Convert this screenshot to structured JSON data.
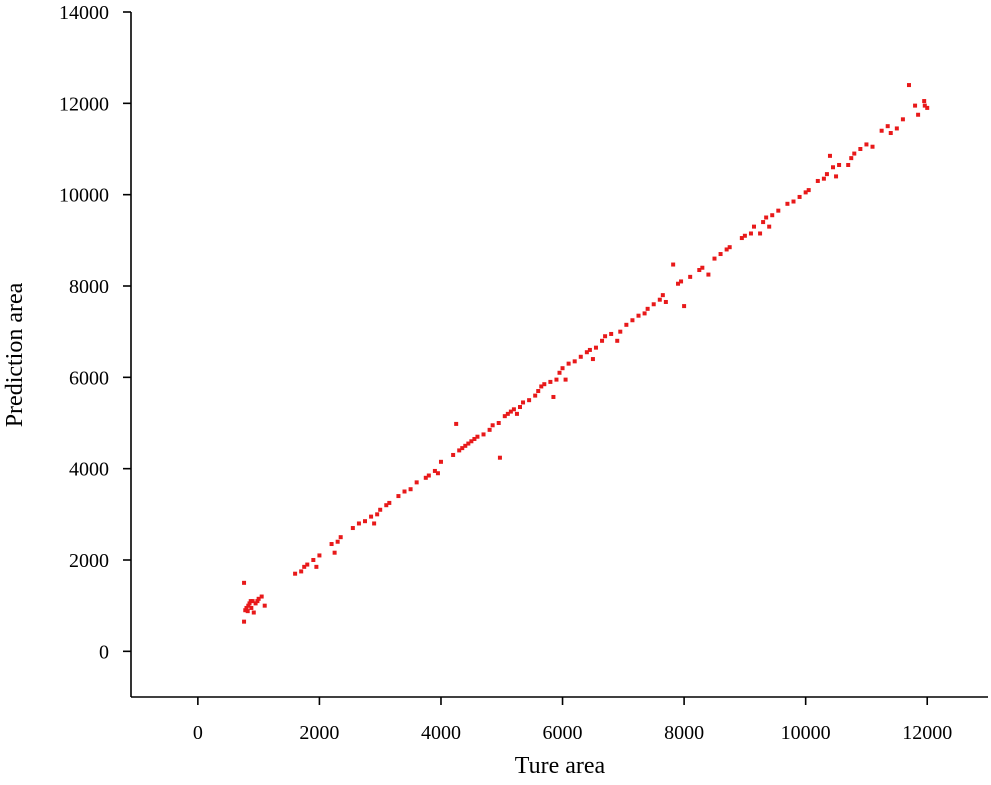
{
  "chart_data": {
    "type": "scatter",
    "x_label": "Ture area",
    "y_label": "Prediction area",
    "color": "#e8191a",
    "xlim": [
      -1100,
      13000
    ],
    "ylim": [
      -1000,
      14000
    ],
    "xticks": [
      0,
      2000,
      4000,
      6000,
      8000,
      10000,
      12000
    ],
    "yticks": [
      0,
      2000,
      4000,
      6000,
      8000,
      10000,
      12000,
      14000
    ],
    "x": [
      760,
      760,
      780,
      800,
      830,
      850,
      870,
      880,
      900,
      920,
      950,
      980,
      1000,
      1050,
      1100,
      820,
      1600,
      1700,
      1750,
      1800,
      1900,
      1950,
      2000,
      2200,
      2250,
      2300,
      2350,
      2550,
      2650,
      2750,
      2850,
      2900,
      2950,
      3000,
      3100,
      3150,
      3300,
      3400,
      3500,
      3600,
      3750,
      3800,
      3900,
      3950,
      4000,
      4200,
      4250,
      4300,
      4350,
      4400,
      4450,
      4500,
      4550,
      4600,
      4700,
      4800,
      4850,
      4950,
      4970,
      5050,
      5100,
      5150,
      5200,
      5250,
      5300,
      5350,
      5450,
      5550,
      5600,
      5650,
      5700,
      5800,
      5850,
      5900,
      5950,
      6000,
      6050,
      6100,
      6200,
      6300,
      6400,
      6450,
      6500,
      6550,
      6650,
      6700,
      6800,
      6900,
      6950,
      7050,
      7150,
      7250,
      7350,
      7400,
      7500,
      7600,
      7650,
      7700,
      7820,
      7900,
      7950,
      8000,
      8100,
      8250,
      8300,
      8400,
      8500,
      8600,
      8700,
      8750,
      8950,
      9000,
      9100,
      9150,
      9250,
      9300,
      9350,
      9400,
      9450,
      9550,
      9700,
      9800,
      9900,
      10000,
      10050,
      10200,
      10300,
      10350,
      10400,
      10450,
      10500,
      10550,
      10700,
      10750,
      10800,
      10900,
      11000,
      11100,
      11250,
      11350,
      11400,
      11500,
      11600,
      11700,
      11800,
      11850,
      11950,
      12000,
      11960
    ],
    "values": [
      1500,
      650,
      900,
      950,
      1000,
      1050,
      1100,
      950,
      1100,
      850,
      1050,
      1100,
      1150,
      1200,
      1000,
      880,
      1700,
      1750,
      1850,
      1900,
      2000,
      1850,
      2100,
      2350,
      2160,
      2400,
      2500,
      2700,
      2800,
      2850,
      2950,
      2800,
      3000,
      3100,
      3200,
      3250,
      3400,
      3500,
      3550,
      3700,
      3800,
      3850,
      3950,
      3900,
      4150,
      4300,
      4980,
      4400,
      4450,
      4500,
      4550,
      4600,
      4650,
      4700,
      4750,
      4850,
      4950,
      5000,
      4240,
      5150,
      5200,
      5250,
      5300,
      5200,
      5350,
      5450,
      5500,
      5600,
      5700,
      5800,
      5850,
      5900,
      5570,
      5950,
      6100,
      6200,
      5950,
      6300,
      6350,
      6450,
      6550,
      6600,
      6400,
      6650,
      6800,
      6900,
      6950,
      6800,
      7000,
      7150,
      7250,
      7350,
      7400,
      7500,
      7600,
      7700,
      7800,
      7650,
      8470,
      8050,
      8100,
      7560,
      8200,
      8350,
      8400,
      8250,
      8600,
      8700,
      8800,
      8850,
      9050,
      9100,
      9150,
      9300,
      9150,
      9400,
      9500,
      9300,
      9550,
      9650,
      9800,
      9850,
      9950,
      10050,
      10100,
      10300,
      10350,
      10450,
      10850,
      10600,
      10400,
      10650,
      10650,
      10800,
      10900,
      11000,
      11100,
      11050,
      11400,
      11500,
      11350,
      11450,
      11650,
      12400,
      11950,
      11750,
      12050,
      11900,
      11950
    ]
  }
}
